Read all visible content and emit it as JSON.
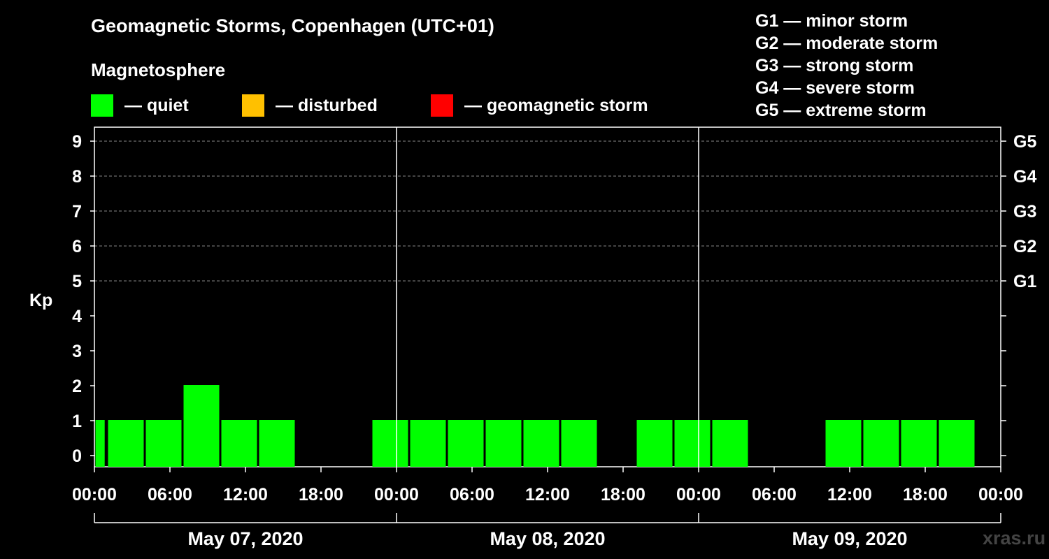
{
  "chart_data": {
    "type": "bar",
    "title": "Geomagnetic Storms, Copenhagen (UTC+01)",
    "subtitle": "Magnetosphere",
    "ylabel": "Kp",
    "ylim": [
      0,
      9
    ],
    "y_ticks": [
      "0",
      "1",
      "2",
      "3",
      "4",
      "5",
      "6",
      "7",
      "8",
      "9"
    ],
    "right_ticks": [
      {
        "kp": 5,
        "label": "G1"
      },
      {
        "kp": 6,
        "label": "G2"
      },
      {
        "kp": 7,
        "label": "G3"
      },
      {
        "kp": 8,
        "label": "G4"
      },
      {
        "kp": 9,
        "label": "G5"
      }
    ],
    "legend": [
      {
        "label": "— quiet",
        "color": "#00ff00"
      },
      {
        "label": "— disturbed",
        "color": "#ffc000"
      },
      {
        "label": "— geomagnetic storm",
        "color": "#ff0000"
      }
    ],
    "g_scale": [
      "G1 — minor storm",
      "G2 — moderate storm",
      "G3 — strong storm",
      "G4 — severe storm",
      "G5 — extreme storm"
    ],
    "x_hours_range": [
      0,
      72
    ],
    "x_ticks": [
      {
        "hour": 0,
        "label": "00:00"
      },
      {
        "hour": 6,
        "label": "06:00"
      },
      {
        "hour": 12,
        "label": "12:00"
      },
      {
        "hour": 18,
        "label": "18:00"
      },
      {
        "hour": 24,
        "label": "00:00"
      },
      {
        "hour": 30,
        "label": "06:00"
      },
      {
        "hour": 36,
        "label": "12:00"
      },
      {
        "hour": 42,
        "label": "18:00"
      },
      {
        "hour": 48,
        "label": "00:00"
      },
      {
        "hour": 54,
        "label": "06:00"
      },
      {
        "hour": 60,
        "label": "12:00"
      },
      {
        "hour": 66,
        "label": "18:00"
      },
      {
        "hour": 72,
        "label": "00:00"
      }
    ],
    "days": [
      {
        "label": "May 07, 2020",
        "start_hour": 0,
        "end_hour": 24
      },
      {
        "label": "May 08, 2020",
        "start_hour": 24,
        "end_hour": 48
      },
      {
        "label": "May 09, 2020",
        "start_hour": 48,
        "end_hour": 72
      }
    ],
    "day_separators_hours": [
      24,
      48
    ],
    "bars": [
      {
        "start_hour": 0,
        "end_hour": 0.9,
        "kp": 1,
        "color": "#00ff00"
      },
      {
        "start_hour": 1,
        "end_hour": 4,
        "kp": 1,
        "color": "#00ff00"
      },
      {
        "start_hour": 4,
        "end_hour": 7,
        "kp": 1,
        "color": "#00ff00"
      },
      {
        "start_hour": 7,
        "end_hour": 10,
        "kp": 2,
        "color": "#00ff00"
      },
      {
        "start_hour": 10,
        "end_hour": 13,
        "kp": 1,
        "color": "#00ff00"
      },
      {
        "start_hour": 13,
        "end_hour": 16,
        "kp": 1,
        "color": "#00ff00"
      },
      {
        "start_hour": 16,
        "end_hour": 19,
        "kp": 0,
        "color": "#00ff00"
      },
      {
        "start_hour": 19,
        "end_hour": 22,
        "kp": 0,
        "color": "#00ff00"
      },
      {
        "start_hour": 22,
        "end_hour": 25,
        "kp": 1,
        "color": "#00ff00"
      },
      {
        "start_hour": 25,
        "end_hour": 28,
        "kp": 1,
        "color": "#00ff00"
      },
      {
        "start_hour": 28,
        "end_hour": 31,
        "kp": 1,
        "color": "#00ff00"
      },
      {
        "start_hour": 31,
        "end_hour": 34,
        "kp": 1,
        "color": "#00ff00"
      },
      {
        "start_hour": 34,
        "end_hour": 37,
        "kp": 1,
        "color": "#00ff00"
      },
      {
        "start_hour": 37,
        "end_hour": 40,
        "kp": 1,
        "color": "#00ff00"
      },
      {
        "start_hour": 40,
        "end_hour": 43,
        "kp": 0,
        "color": "#00ff00"
      },
      {
        "start_hour": 43,
        "end_hour": 46,
        "kp": 1,
        "color": "#00ff00"
      },
      {
        "start_hour": 46,
        "end_hour": 49,
        "kp": 1,
        "color": "#00ff00"
      },
      {
        "start_hour": 49,
        "end_hour": 52,
        "kp": 1,
        "color": "#00ff00"
      },
      {
        "start_hour": 52,
        "end_hour": 55,
        "kp": 0,
        "color": "#00ff00"
      },
      {
        "start_hour": 55,
        "end_hour": 58,
        "kp": 0,
        "color": "#00ff00"
      },
      {
        "start_hour": 58,
        "end_hour": 61,
        "kp": 1,
        "color": "#00ff00"
      },
      {
        "start_hour": 61,
        "end_hour": 64,
        "kp": 1,
        "color": "#00ff00"
      },
      {
        "start_hour": 64,
        "end_hour": 67,
        "kp": 1,
        "color": "#00ff00"
      },
      {
        "start_hour": 67,
        "end_hour": 70,
        "kp": 1,
        "color": "#00ff00"
      }
    ]
  },
  "watermark": "xras.ru"
}
